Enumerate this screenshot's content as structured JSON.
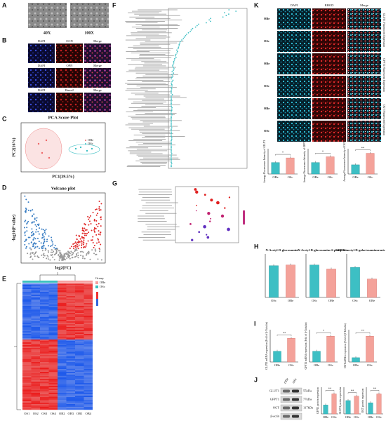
{
  "panels": {
    "A": {
      "label": "A",
      "images": [
        "40X",
        "100X"
      ]
    },
    "B": {
      "label": "B",
      "rows": [
        [
          "DAPI",
          "OCN",
          "Merge"
        ],
        [
          "DAPI",
          "OPN",
          "Merge"
        ],
        [
          "DAPI",
          "Runx2",
          "Merge"
        ]
      ]
    },
    "C": {
      "label": "C",
      "title": "PCA Score Plot",
      "x_label": "PC1(39.5%)",
      "y_label": "PC2(16%)",
      "legend": [
        "OBe",
        "OSc"
      ]
    },
    "D": {
      "label": "D",
      "title": "Volcano plot",
      "x_label": "log2(FC)",
      "y_label": "-log10(P value)"
    },
    "E": {
      "label": "E",
      "legend_title": "Group",
      "legend": [
        "OBe",
        "OSc"
      ],
      "columns": [
        "OS1",
        "OS2",
        "OS3",
        "OS4",
        "OB2",
        "OB3",
        "OB1",
        "OB4"
      ]
    },
    "F": {
      "label": "F"
    },
    "G": {
      "label": "G"
    },
    "H": {
      "label": "H",
      "charts": [
        {
          "title": "N-Acetyl-D-glucosamine",
          "categories": [
            "OSc",
            "OBe"
          ],
          "values": [
            0.95,
            0.97
          ],
          "ylim": [
            0,
            1.3
          ]
        },
        {
          "title": "N-Acetyl-D-glucosamine 6-phosphate",
          "categories": [
            "OSc",
            "OBe"
          ],
          "values": [
            0.97,
            0.85
          ],
          "ylim": [
            0,
            1.3
          ]
        },
        {
          "title": "UDP-N-acetyl-D-galactosaminuronic acid",
          "categories": [
            "OSc",
            "OBe"
          ],
          "values": [
            0.9,
            0.55
          ],
          "ylim": [
            0,
            1.3
          ]
        }
      ]
    },
    "I": {
      "label": "I",
      "charts": [
        {
          "y_label": "GLUT1 mRNA expression (Fold of β-Tubulin)",
          "categories": [
            "OBe",
            "OSc"
          ],
          "values": [
            0.5,
            1.1
          ],
          "ylim": [
            0,
            1.5
          ],
          "significance": "**"
        },
        {
          "y_label": "GFPT1 mRNA expression (Fold of β-Tubulin)",
          "categories": [
            "OBe",
            "OSc"
          ],
          "values": [
            0.5,
            1.2
          ],
          "ylim": [
            0,
            1.5
          ],
          "significance": "*"
        },
        {
          "y_label": "OGT mRNA expression (Fold of β-Tubulin)",
          "categories": [
            "OBe",
            "OSc"
          ],
          "values": [
            0.2,
            1.2
          ],
          "ylim": [
            0,
            1.5
          ],
          "significance": "**"
        }
      ]
    },
    "J": {
      "label": "J",
      "lanes": [
        "OBe",
        "OSc"
      ],
      "bands": [
        {
          "name": "GLUT1",
          "size": "55kDa"
        },
        {
          "name": "GFPT1",
          "size": "77kDa"
        },
        {
          "name": "OGT",
          "size": "117kDa"
        },
        {
          "name": "β-actin"
        }
      ],
      "charts": [
        {
          "y_label": "GFPT1 protein expression",
          "categories": [
            "OBe",
            "OSc"
          ],
          "values": [
            0.4,
            0.9
          ],
          "ylim": [
            0,
            1.2
          ],
          "significance": "**"
        },
        {
          "y_label": "GLUT1 protein expression",
          "categories": [
            "OBe",
            "OSc"
          ],
          "values": [
            0.6,
            0.8
          ],
          "ylim": [
            0,
            1.2
          ],
          "significance": "**"
        },
        {
          "y_label": "OGT protein expression",
          "categories": [
            "OBe",
            "OSc"
          ],
          "values": [
            0.5,
            0.9
          ],
          "ylim": [
            0,
            1.2
          ],
          "significance": "**"
        }
      ]
    },
    "K": {
      "label": "K",
      "columns": [
        "DAPI",
        "RHOD",
        "Merge"
      ],
      "row_labels": [
        "OBe",
        "OSc",
        "OBe",
        "OSc",
        "OBe",
        "OSc"
      ],
      "side_labels": [
        "GLUT1 Fluorescent Expression",
        "GFPT1 Fluorescent Expression",
        "OGT Fluorescent Expression"
      ],
      "charts": [
        {
          "y_label": "Average Fluorescence Intensity of GLUT1",
          "categories": [
            "OBe",
            "OSc"
          ],
          "values": [
            0.5,
            0.7
          ],
          "ylim": [
            0,
            1.1
          ],
          "significance": "*"
        },
        {
          "y_label": "Average Fluorescence Intensity of GFPT1",
          "categories": [
            "OBe",
            "OSc"
          ],
          "values": [
            0.5,
            0.75
          ],
          "ylim": [
            0,
            1.1
          ],
          "significance": "*"
        },
        {
          "y_label": "Average Fluorescence Intensity of OGT",
          "categories": [
            "OBe",
            "OSc"
          ],
          "values": [
            0.4,
            0.9
          ],
          "ylim": [
            0,
            1.1
          ],
          "significance": "**"
        }
      ]
    }
  }
}
